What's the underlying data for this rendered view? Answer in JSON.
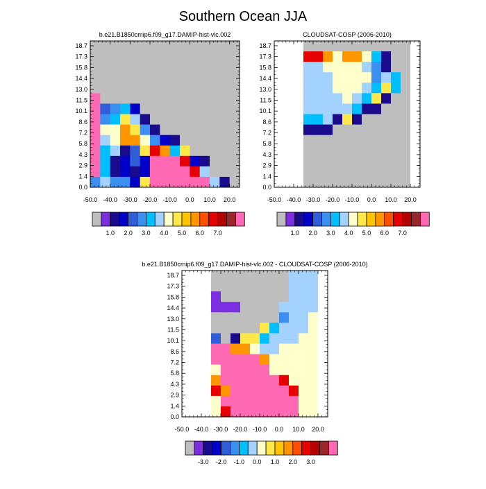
{
  "title": "Southern Ocean JJA",
  "colors": {
    "missing": "#bebebe",
    "abs_scale": [
      "#bebebe",
      "#7b2fe0",
      "#1a0a8c",
      "#0000c8",
      "#2f5fd8",
      "#3a8ff0",
      "#00bfff",
      "#a4d2ff",
      "#ffffcc",
      "#ffe94a",
      "#ffc400",
      "#ff9600",
      "#ff5000",
      "#e60000",
      "#b30000",
      "#99262b",
      "#ff69b4"
    ],
    "diff_scale": [
      "#bebebe",
      "#7b2fe0",
      "#1a0a8c",
      "#0000c8",
      "#2f5fd8",
      "#3a8ff0",
      "#00bfff",
      "#a4d2ff",
      "#ffffcc",
      "#ffe94a",
      "#ffc400",
      "#ff9600",
      "#ff5000",
      "#e60000",
      "#b30000",
      "#99262b",
      "#ff69b4"
    ]
  },
  "colorbars": {
    "abs_labels": [
      {
        "text": "1.0",
        "after_box": 2
      },
      {
        "text": "2.0",
        "after_box": 4
      },
      {
        "text": "3.0",
        "after_box": 6
      },
      {
        "text": "4.0",
        "after_box": 8
      },
      {
        "text": "5.0",
        "after_box": 10
      },
      {
        "text": "6.0",
        "after_box": 12
      },
      {
        "text": "7.0",
        "after_box": 14
      }
    ],
    "diff_labels": [
      {
        "text": "-3.0",
        "after_box": 2
      },
      {
        "text": "-2.0",
        "after_box": 4
      },
      {
        "text": "-1.0",
        "after_box": 6
      },
      {
        "text": "0.0",
        "after_box": 8
      },
      {
        "text": "1.0",
        "after_box": 10
      },
      {
        "text": "2.0",
        "after_box": 12
      },
      {
        "text": "3.0",
        "after_box": 14
      }
    ]
  },
  "chart_data": [
    {
      "type": "heatmap",
      "title": "b.e21.B1850cmip6.f09_g17.DAMIP-hist-vlc.002",
      "x_tick_labels": [
        "-50.0",
        "-40.0",
        "-30.0",
        "-20.0",
        "-10.0",
        "0.0",
        "10.0",
        "20.0"
      ],
      "y_tick_labels": [
        "0.0",
        "1.4",
        "2.9",
        "4.3",
        "5.8",
        "7.2",
        "8.6",
        "10.1",
        "11.5",
        "13.0",
        "14.4",
        "15.8",
        "17.3",
        "18.7"
      ],
      "x_bins": 15,
      "y_bins": 14,
      "grid": [
        "GGGGGGGGGGGGGGG",
        "GGGGGGGGGGGGGGG",
        "GGGGGGGGGGGGGGG",
        "GGGGGGGGGGGGGGG",
        "GGGGGGGGGGGGGGG",
        "PGGGGGGGGGGGGGG",
        "PBUCDGGGGGGGGGG",
        "PUCSLNGGGGGGGGG",
        "PYYOSUNGGGGGGGG",
        "PLYOOYUDNGGGGGG",
        "PCLNBSROCSGGGGG",
        "PCNDBDPPPRDNGGG",
        "PCNDNDPPPPRLGGG",
        "ULUUDSPPPPPPLNG"
      ]
    },
    {
      "type": "heatmap",
      "title": "CLOUDSAT-COSP (2006-2010)",
      "x_tick_labels": [
        "-50.0",
        "-40.0",
        "-30.0",
        "-20.0",
        "-10.0",
        "0.0",
        "10.0",
        "20.0"
      ],
      "y_tick_labels": [
        "0.0",
        "1.4",
        "2.9",
        "4.3",
        "5.8",
        "7.2",
        "8.6",
        "10.1",
        "11.5",
        "13.0",
        "14.4",
        "15.8",
        "17.3",
        "18.7"
      ],
      "x_bins": 15,
      "y_bins": 14,
      "grid": [
        "WWWGGGGGGGGGGGW",
        "WWWRROYOOYCNGGW",
        "WWWLLYYYYLUNGGW",
        "WWWLLLYYYYULCGW",
        "WWWLLLYYYLCSCGW",
        "WWWLLLLYLCSNGGW",
        "WWWLLLLLCNNGGGW",
        "WWWCCLNSNGGGGGW",
        "WWWNNNGGGGGGGGW",
        "WWWGGGGGGGGGGGW",
        "WWWGGGGGGGGGGGW",
        "WWWGGGGGGGGGGGW",
        "WWWGGGGGGGGGGGW",
        "WWWGGGGGGGGGGGW"
      ]
    },
    {
      "type": "heatmap",
      "title": "b.e21.B1850cmip6.f09_g17.DAMIP-hist-vlc.002 - CLOUDSAT-COSP (2006-2010)",
      "x_tick_labels": [
        "-50.0",
        "-40.0",
        "-30.0",
        "-20.0",
        "-10.0",
        "0.0",
        "10.0",
        "20.0"
      ],
      "y_tick_labels": [
        "0.0",
        "1.4",
        "2.9",
        "4.3",
        "5.8",
        "7.2",
        "8.6",
        "10.1",
        "11.5",
        "13.0",
        "14.4",
        "15.8",
        "17.3",
        "18.7"
      ],
      "x_bins": 15,
      "y_bins": 14,
      "grid": [
        "WWWGGGGGGGGLLLW",
        "WWWGGGGGGGGLLLW",
        "WWWVGGGGGGGLLLW",
        "WWWVVVGGGGLLLLW",
        "WWWGGGGGGGULLYW",
        "WWWGGGGGSCLLLYW",
        "WWWBGNSSCLLLYYW",
        "WWWPPOOYLLYYYYW",
        "WWWPPPPPOYYYYYW",
        "WWWYPPPPPYYYYYW",
        "WWWOPPPPPPRYYYW",
        "WWWROPPPPPPRYYW",
        "WWWYPPPPPPPPYYW",
        "WWWYRPPPPPPPYYW"
      ]
    }
  ]
}
